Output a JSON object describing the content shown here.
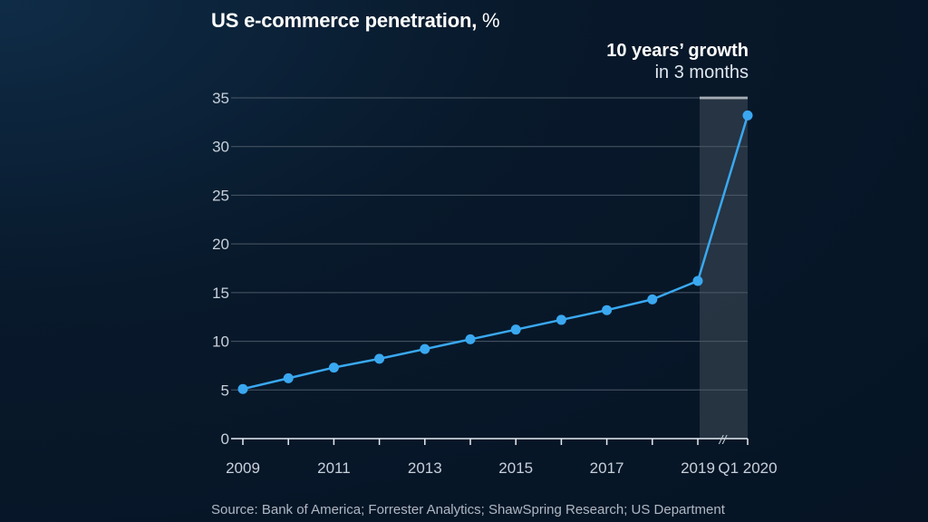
{
  "title": "US e-commerce penetration,",
  "title_unit": "%",
  "annotation": {
    "line1": "10 years’ growth",
    "line2": "in 3 months"
  },
  "source": "Source: Bank of America; Forrester Analytics; ShawSpring Research; US Department",
  "axis_break_marker": "//",
  "colors": {
    "line": "#3aa8f0",
    "background": "#08192b",
    "highlight": "#2b3a48",
    "grid": "#4b5968"
  },
  "chart_data": {
    "type": "line",
    "title": "US e-commerce penetration, %",
    "x": [
      "2009",
      "2010",
      "2011",
      "2012",
      "2013",
      "2014",
      "2015",
      "2016",
      "2017",
      "2018",
      "2019",
      "Q1 2020"
    ],
    "values": [
      5.1,
      6.2,
      7.3,
      8.2,
      9.2,
      10.2,
      11.2,
      12.2,
      13.2,
      14.3,
      16.2,
      33.2
    ],
    "x_tick_labels": [
      "2009",
      "2011",
      "2013",
      "2015",
      "2017",
      "2019",
      "Q1 2020"
    ],
    "y_ticks": [
      0,
      5,
      10,
      15,
      20,
      25,
      30,
      35
    ],
    "ylim": [
      0,
      35
    ],
    "grid": true,
    "highlight_range": [
      "2019",
      "Q1 2020"
    ],
    "axis_break_between": [
      "2019",
      "Q1 2020"
    ]
  }
}
